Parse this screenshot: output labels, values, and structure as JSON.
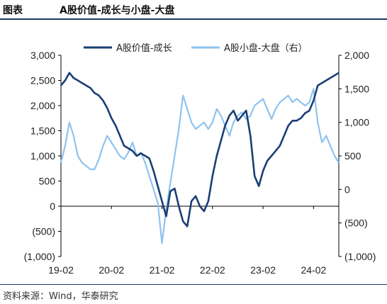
{
  "header": {
    "label": "图表",
    "title": "A股价值-成长与小盘-大盘"
  },
  "footer": {
    "source": "资料来源：Wind，华泰研究"
  },
  "chart_data": {
    "type": "line",
    "title": "A股价值-成长与小盘-大盘",
    "xlabel": "",
    "ylabel": "",
    "x_ticks": [
      "19-02",
      "20-02",
      "21-02",
      "22-02",
      "23-02",
      "24-02"
    ],
    "x_range": [
      "2019-02",
      "2024-08"
    ],
    "y_left": {
      "lim": [
        -1000,
        3000
      ],
      "ticks": [
        3000,
        2500,
        2000,
        1500,
        1000,
        500,
        0,
        -500,
        -1000
      ],
      "tick_labels": [
        "3,000",
        "2,500",
        "2,000",
        "1,500",
        "1,000",
        "500",
        "0",
        "(500)",
        "(1,000)"
      ]
    },
    "y_right": {
      "lim": [
        -1000,
        2000
      ],
      "ticks": [
        2000,
        1500,
        1000,
        500,
        0,
        -500,
        -1000
      ],
      "tick_labels": [
        "2,000",
        "1,500",
        "1,000",
        "500",
        "0",
        "(500)",
        "(1,000)"
      ]
    },
    "legend_position": "top-center",
    "series": [
      {
        "name": "A股价值-成长",
        "axis": "left",
        "color": "#1b3e75",
        "x": [
          "2019-02",
          "2019-03",
          "2019-04",
          "2019-05",
          "2019-06",
          "2019-07",
          "2019-08",
          "2019-09",
          "2019-10",
          "2019-11",
          "2019-12",
          "2020-01",
          "2020-02",
          "2020-03",
          "2020-04",
          "2020-05",
          "2020-06",
          "2020-07",
          "2020-08",
          "2020-09",
          "2020-10",
          "2020-11",
          "2020-12",
          "2021-01",
          "2021-02",
          "2021-03",
          "2021-04",
          "2021-05",
          "2021-06",
          "2021-07",
          "2021-08",
          "2021-09",
          "2021-10",
          "2021-11",
          "2021-12",
          "2022-01",
          "2022-02",
          "2022-03",
          "2022-04",
          "2022-05",
          "2022-06",
          "2022-07",
          "2022-08",
          "2022-09",
          "2022-10",
          "2022-11",
          "2022-12",
          "2023-01",
          "2023-02",
          "2023-03",
          "2023-04",
          "2023-05",
          "2023-06",
          "2023-07",
          "2023-08",
          "2023-09",
          "2023-10",
          "2023-11",
          "2023-12",
          "2024-01",
          "2024-02",
          "2024-03",
          "2024-04",
          "2024-05",
          "2024-06",
          "2024-07",
          "2024-08"
        ],
        "values": [
          2400,
          2500,
          2650,
          2550,
          2500,
          2450,
          2400,
          2350,
          2250,
          2200,
          2100,
          1950,
          1750,
          1600,
          1400,
          1200,
          1150,
          1100,
          1000,
          1050,
          1000,
          950,
          700,
          400,
          100,
          -200,
          300,
          350,
          0,
          -300,
          -400,
          100,
          200,
          0,
          -100,
          100,
          600,
          1000,
          1300,
          1600,
          1800,
          1900,
          1700,
          1800,
          1900,
          1400,
          600,
          400,
          700,
          900,
          1000,
          1100,
          1200,
          1400,
          1600,
          1700,
          1700,
          1750,
          1850,
          1900,
          2100,
          2400,
          2450,
          2500,
          2550,
          2600,
          2650
        ]
      },
      {
        "name": "A股小盘-大盘（右）",
        "axis": "right",
        "color": "#8fc3ef",
        "x": [
          "2019-02",
          "2019-03",
          "2019-04",
          "2019-05",
          "2019-06",
          "2019-07",
          "2019-08",
          "2019-09",
          "2019-10",
          "2019-11",
          "2019-12",
          "2020-01",
          "2020-02",
          "2020-03",
          "2020-04",
          "2020-05",
          "2020-06",
          "2020-07",
          "2020-08",
          "2020-09",
          "2020-10",
          "2020-11",
          "2020-12",
          "2021-01",
          "2021-02",
          "2021-03",
          "2021-04",
          "2021-05",
          "2021-06",
          "2021-07",
          "2021-08",
          "2021-09",
          "2021-10",
          "2021-11",
          "2021-12",
          "2022-01",
          "2022-02",
          "2022-03",
          "2022-04",
          "2022-05",
          "2022-06",
          "2022-07",
          "2022-08",
          "2022-09",
          "2022-10",
          "2022-11",
          "2022-12",
          "2023-01",
          "2023-02",
          "2023-03",
          "2023-04",
          "2023-05",
          "2023-06",
          "2023-07",
          "2023-08",
          "2023-09",
          "2023-10",
          "2023-11",
          "2023-12",
          "2024-01",
          "2024-02",
          "2024-03",
          "2024-04",
          "2024-05",
          "2024-06",
          "2024-07",
          "2024-08"
        ],
        "values": [
          400,
          650,
          1000,
          800,
          500,
          400,
          350,
          300,
          300,
          450,
          650,
          800,
          700,
          600,
          500,
          450,
          550,
          700,
          500,
          550,
          400,
          200,
          0,
          -200,
          -800,
          -300,
          100,
          500,
          900,
          1400,
          1200,
          1000,
          900,
          950,
          1000,
          900,
          1000,
          1200,
          1100,
          950,
          800,
          1000,
          1100,
          1150,
          1050,
          1100,
          1250,
          1300,
          1350,
          1200,
          1050,
          1200,
          1300,
          1350,
          1400,
          1300,
          1350,
          1300,
          1250,
          1300,
          1500,
          1000,
          700,
          800,
          650,
          500,
          400
        ]
      }
    ]
  }
}
